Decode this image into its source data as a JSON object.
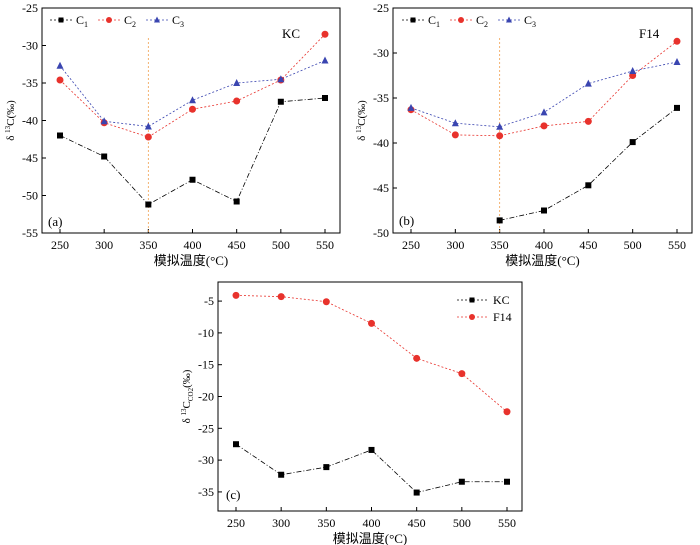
{
  "chart_data": [
    {
      "type": "line",
      "panel_label": "(a)",
      "annotation": "KC",
      "xlabel": "模拟温度(°C)",
      "ylabel_parts": [
        "δ",
        "13",
        "C(‰)"
      ],
      "x": [
        250,
        300,
        350,
        400,
        450,
        500,
        550
      ],
      "x_ticks": [
        "250",
        "300",
        "350",
        "400",
        "450",
        "500",
        "550"
      ],
      "y_ticks": [
        "-25",
        "-30",
        "-35",
        "-40",
        "-45",
        "-50",
        "-55"
      ],
      "ylim": [
        -55,
        -25
      ],
      "grid": false,
      "legend_position": "top-left",
      "reference_line_x": 350,
      "series": [
        {
          "name": "C1",
          "name_base": "C",
          "name_sub": "1",
          "marker": "square",
          "color": "#000000",
          "values": [
            -42.0,
            -44.8,
            -51.2,
            -47.9,
            -50.8,
            -37.5,
            -37.0
          ]
        },
        {
          "name": "C2",
          "name_base": "C",
          "name_sub": "2",
          "marker": "circle",
          "color": "#e8322c",
          "values": [
            -34.6,
            -40.3,
            -42.2,
            -38.5,
            -37.4,
            -34.6,
            -28.5
          ]
        },
        {
          "name": "C3",
          "name_base": "C",
          "name_sub": "3",
          "marker": "triangle",
          "color": "#3a45b0",
          "values": [
            -32.7,
            -40.1,
            -40.8,
            -37.3,
            -35.0,
            -34.5,
            -32.0
          ]
        }
      ]
    },
    {
      "type": "line",
      "panel_label": "(b)",
      "annotation": "F14",
      "xlabel": "模拟温度(°C)",
      "ylabel_parts": [
        "δ",
        "13",
        "C(‰)"
      ],
      "x": [
        250,
        300,
        350,
        400,
        450,
        500,
        550
      ],
      "x_ticks": [
        "250",
        "300",
        "350",
        "400",
        "450",
        "500",
        "550"
      ],
      "y_ticks": [
        "-25",
        "-30",
        "-35",
        "-40",
        "-45",
        "-50"
      ],
      "ylim": [
        -50,
        -25
      ],
      "grid": false,
      "legend_position": "top-left",
      "reference_line_x": 350,
      "series": [
        {
          "name": "C1",
          "name_base": "C",
          "name_sub": "1",
          "marker": "square",
          "color": "#000000",
          "values": [
            null,
            null,
            -48.6,
            -47.5,
            -44.7,
            -39.9,
            -36.1
          ]
        },
        {
          "name": "C2",
          "name_base": "C",
          "name_sub": "2",
          "marker": "circle",
          "color": "#e8322c",
          "values": [
            -36.3,
            -39.1,
            -39.2,
            -38.1,
            -37.6,
            -32.5,
            -28.7
          ]
        },
        {
          "name": "C3",
          "name_base": "C",
          "name_sub": "3",
          "marker": "triangle",
          "color": "#3a45b0",
          "values": [
            -36.1,
            -37.8,
            -38.2,
            -36.6,
            -33.4,
            -32.0,
            -31.0
          ]
        }
      ]
    },
    {
      "type": "line",
      "panel_label": "(c)",
      "xlabel": "模拟温度(°C)",
      "ylabel_parts": [
        "δ",
        "13",
        "C",
        "CO2",
        "(‰)"
      ],
      "x": [
        250,
        300,
        350,
        400,
        450,
        500,
        550
      ],
      "x_ticks": [
        "250",
        "300",
        "350",
        "400",
        "450",
        "500",
        "550"
      ],
      "y_ticks": [
        "-5",
        "-10",
        "-15",
        "-20",
        "-25",
        "-30",
        "-35"
      ],
      "ylim": [
        -38,
        -2
      ],
      "grid": false,
      "legend_position": "top-right",
      "series": [
        {
          "name": "KC",
          "marker": "square",
          "color": "#000000",
          "values": [
            -27.5,
            -32.3,
            -31.1,
            -28.4,
            -35.1,
            -33.4,
            -33.4
          ]
        },
        {
          "name": "F14",
          "marker": "circle",
          "color": "#e8322c",
          "values": [
            -4.1,
            -4.3,
            -5.1,
            -8.5,
            -14.0,
            -16.4,
            -22.4
          ]
        }
      ]
    }
  ]
}
